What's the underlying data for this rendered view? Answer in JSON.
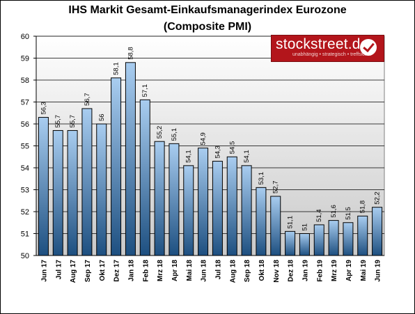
{
  "chart_data": {
    "type": "bar",
    "title": "IHS Markit Gesamt-Einkaufsmanagerindex Eurozone",
    "subtitle": "(Composite PMI)",
    "ylim": [
      50,
      60
    ],
    "yticks": [
      "50",
      "51",
      "52",
      "53",
      "54",
      "55",
      "56",
      "57",
      "58",
      "59",
      "60"
    ],
    "grid": true,
    "categories": [
      "Jun 17",
      "Jul 17",
      "Aug 17",
      "Sep 17",
      "Okt 17",
      "Dez 17",
      "Jan 18",
      "Feb 18",
      "Mrz 18",
      "Apr 18",
      "Mai 18",
      "Jun 18",
      "Jul 18",
      "Aug 18",
      "Sep 18",
      "Okt 18",
      "Nov 18",
      "Dez 18",
      "Jan 19",
      "Feb 19",
      "Mrz 19",
      "Apr 19",
      "Mai 19",
      "Jun 19"
    ],
    "values": [
      56.3,
      55.7,
      55.7,
      56.7,
      56,
      58.1,
      58.8,
      57.1,
      55.2,
      55.1,
      54.1,
      54.9,
      54.3,
      54.5,
      54.1,
      53.1,
      52.7,
      51.1,
      51,
      51.4,
      51.6,
      51.5,
      51.8,
      52.2
    ],
    "value_labels": [
      "56,3",
      "55,7",
      "55,7",
      "56,7",
      "56",
      "58,1",
      "58,8",
      "57,1",
      "55,2",
      "55,1",
      "54,1",
      "54,9",
      "54,3",
      "54,5",
      "54,1",
      "53,1",
      "52,7",
      "51,1",
      "51",
      "51,4",
      "51,6",
      "51,5",
      "51,8",
      "52,2"
    ],
    "bar_color_top": "#a9cdf0",
    "bar_color_bottom": "#1d4f80"
  },
  "watermark": {
    "name": "stockstreet.de",
    "tagline": "unabhängig • strategisch • treffsicher",
    "color": "#b3151b"
  }
}
